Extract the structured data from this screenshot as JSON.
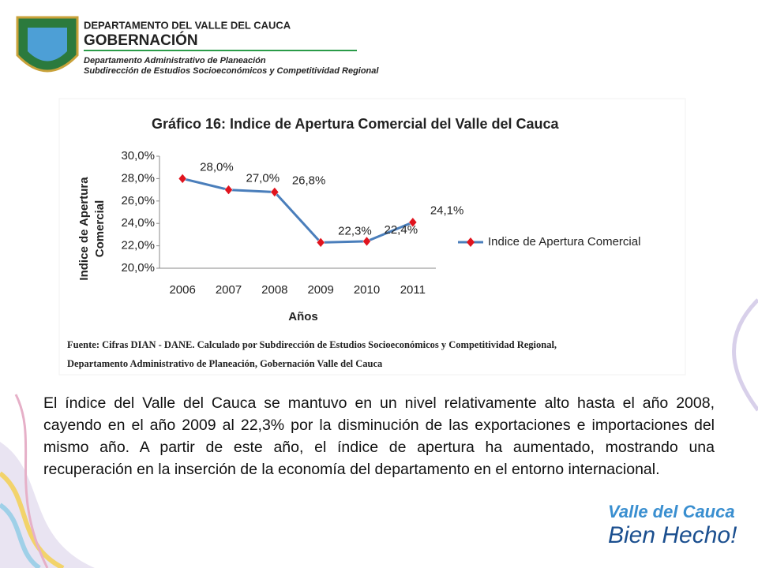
{
  "header": {
    "line1": "DEPARTAMENTO DEL VALLE DEL CAUCA",
    "line2": "GOBERNACIÓN",
    "line3": "Departamento  Administrativo de Planeación",
    "line4": "Subdirección de Estudios Socioeconómicos y Competitividad Regional"
  },
  "chart_data": {
    "type": "line",
    "title": "Gráfico 16: Indice de Apertura Comercial  del Valle del Cauca",
    "xlabel": "Años",
    "ylabel": [
      "Indice de Apertura",
      "Comercial"
    ],
    "categories": [
      "2006",
      "2007",
      "2008",
      "2009",
      "2010",
      "2011"
    ],
    "series": [
      {
        "name": "Indice de Apertura Comercial",
        "color": "#4a7ebb",
        "marker_color": "#e0141e",
        "values": [
          28.0,
          27.0,
          26.8,
          22.3,
          22.4,
          24.1
        ],
        "value_labels": [
          "28,0%",
          "27,0%",
          "26,8%",
          "22,3%",
          "22,4%",
          "24,1%"
        ]
      }
    ],
    "ylim": [
      20,
      30
    ],
    "yticks": [
      {
        "value": 20,
        "label": "20,0%"
      },
      {
        "value": 22,
        "label": "22,0%"
      },
      {
        "value": 24,
        "label": "24,0%"
      },
      {
        "value": 26,
        "label": "26,0%"
      },
      {
        "value": 28,
        "label": "28,0%"
      },
      {
        "value": 30,
        "label": "30,0%"
      }
    ],
    "legend": "right"
  },
  "source": {
    "label": "Fuente",
    "line1": ": Cifras DIAN - DANE. Calculado por Subdirección de Estudios Socioeconómicos y Competitividad Regional,",
    "line2": "Departamento Administrativo de Planeación, Gobernación Valle del Cauca"
  },
  "body": "El índice del Valle del Cauca se mantuvo en un nivel relativamente alto hasta el año 2008, cayendo en el año 2009 al 22,3% por la disminución de las exportaciones e importaciones del mismo año. A partir de este año, el índice de apertura ha aumentado, mostrando una recuperación en la inserción de la economía del departamento en el entorno internacional.",
  "footer": {
    "line1": "Valle del Cauca",
    "line2": "Bien Hecho!"
  }
}
